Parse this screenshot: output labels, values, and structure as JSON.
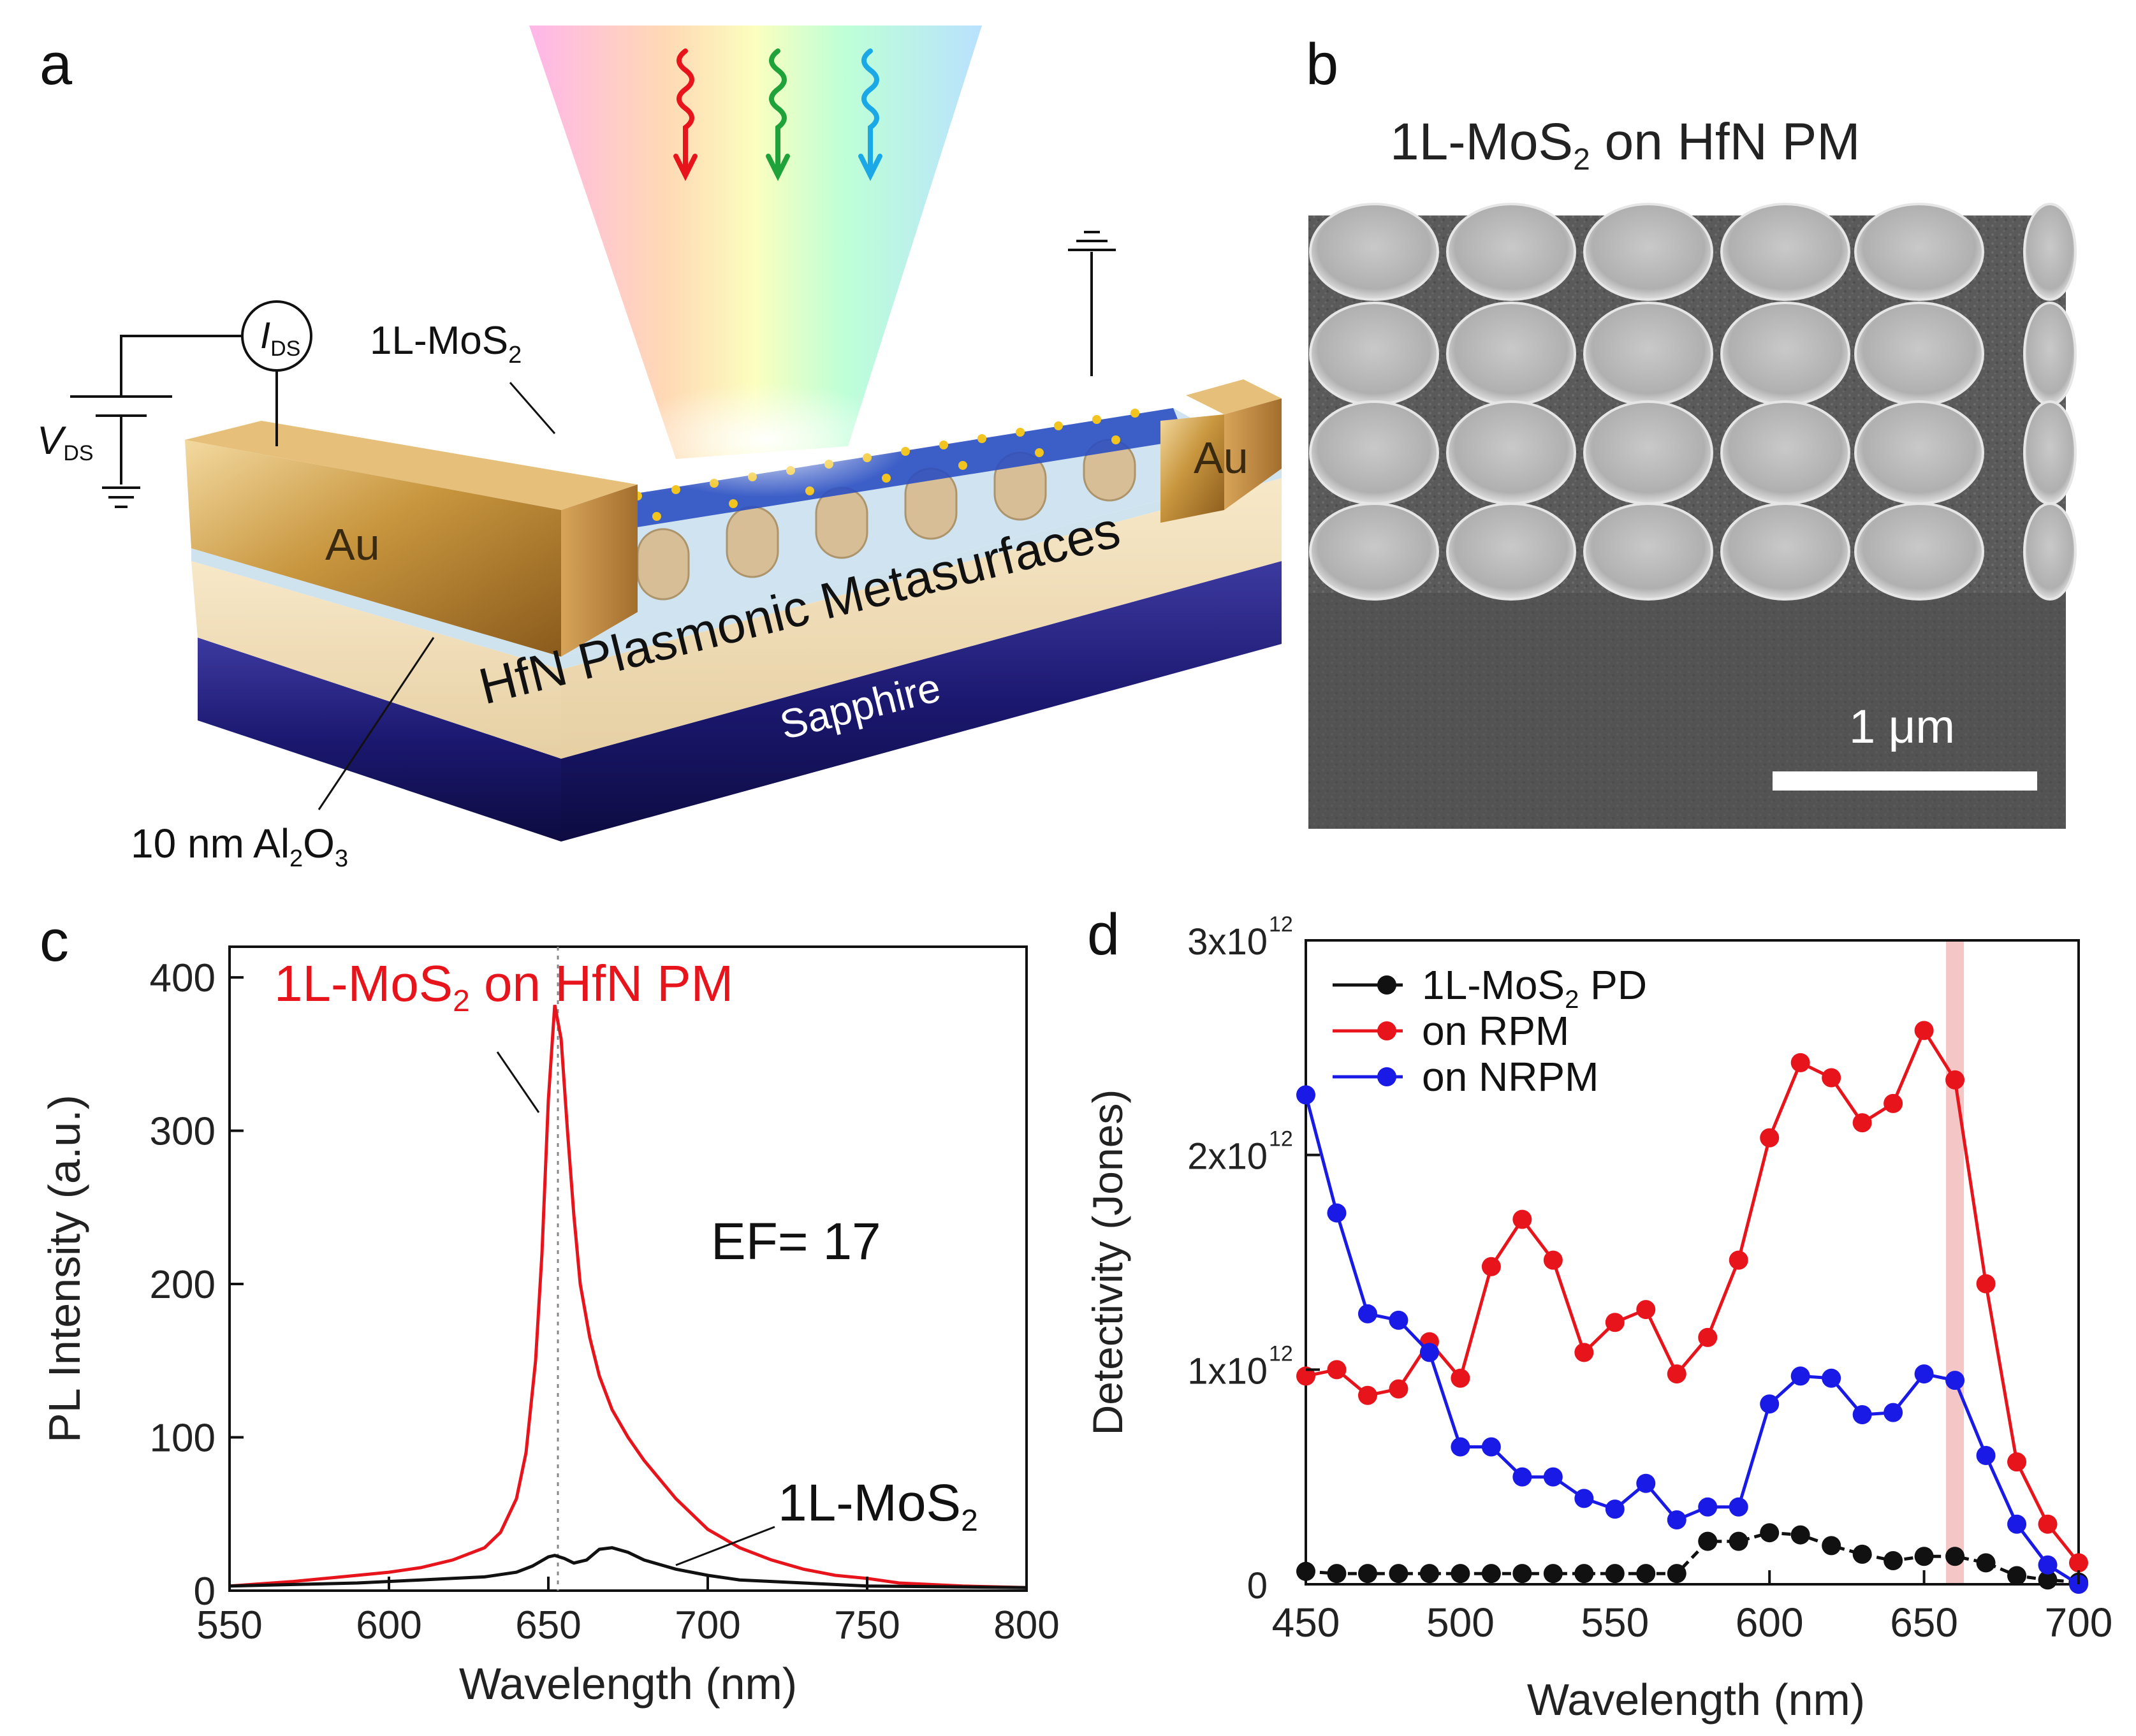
{
  "figure": {
    "panel_a": {
      "letter": "a",
      "label_mos2": "1L-MoS",
      "label_mos2_sub": "2",
      "label_au_left": "Au",
      "label_au_right": "Au",
      "label_hfn": "HfN Plasmonic Metasurfaces",
      "label_sapphire": "Sapphire",
      "label_al2o3_prefix": "10 nm  Al",
      "label_al2o3_sub": "2",
      "label_al2o3_o": "O",
      "label_al2o3_sub3": "3",
      "ids_main": "I",
      "ids_sub": "DS",
      "vds_main": "V",
      "vds_sub": "DS"
    },
    "panel_b": {
      "letter": "b",
      "title_main": "1L-MoS",
      "title_sub": "2",
      "title_rest": " on HfN PM",
      "scale_label": "1 μm"
    },
    "panel_c": {
      "letter": "c"
    },
    "panel_d": {
      "letter": "d"
    }
  },
  "colors": {
    "red": "#e8141c",
    "black": "#111111",
    "blue": "#1a1ae6",
    "highlight": "#f2b8b8"
  },
  "chart_data": [
    {
      "id": "c",
      "type": "line",
      "xlabel": "Wavelength (nm)",
      "ylabel": "PL Intensity (a.u.)",
      "xlim": [
        550,
        800
      ],
      "ylim": [
        0,
        420
      ],
      "xticks": [
        550,
        600,
        650,
        700,
        750,
        800
      ],
      "yticks": [
        0,
        100,
        200,
        300,
        400
      ],
      "annotation_ef": "EF= 17",
      "series_label_red_main": "1L-MoS",
      "series_label_red_sub": "2",
      "series_label_red_rest": " on HfN PM",
      "series_label_black_main": "1L-MoS",
      "series_label_black_sub": "2",
      "peak_marker_nm": 653,
      "series": [
        {
          "name": "1L-MoS2 on HfN PM",
          "color": "#e8141c",
          "x": [
            550,
            570,
            590,
            600,
            610,
            620,
            630,
            635,
            640,
            643,
            646,
            648,
            650,
            652,
            654,
            656,
            658,
            660,
            663,
            666,
            670,
            675,
            680,
            690,
            700,
            710,
            720,
            730,
            740,
            750,
            760,
            780,
            800
          ],
          "y": [
            3,
            6,
            10,
            12,
            15,
            20,
            28,
            38,
            60,
            90,
            150,
            220,
            320,
            382,
            360,
            300,
            245,
            200,
            165,
            140,
            118,
            100,
            85,
            60,
            40,
            28,
            20,
            14,
            10,
            8,
            5,
            3,
            2
          ]
        },
        {
          "name": "1L-MoS2",
          "color": "#111111",
          "x": [
            550,
            570,
            590,
            610,
            620,
            630,
            640,
            645,
            650,
            652,
            655,
            658,
            662,
            666,
            670,
            675,
            680,
            685,
            690,
            700,
            710,
            720,
            730,
            750,
            800
          ],
          "y": [
            3,
            4,
            5,
            7,
            8,
            9,
            12,
            16,
            22,
            23,
            21,
            18,
            20,
            27,
            28,
            25,
            20,
            17,
            14,
            10,
            7,
            6,
            5,
            3,
            2
          ]
        }
      ]
    },
    {
      "id": "d",
      "type": "line",
      "xlabel": "Wavelength (nm)",
      "ylabel": "Detectivity (Jones)",
      "xlim": [
        450,
        700
      ],
      "ylim": [
        0,
        3
      ],
      "xticks": [
        450,
        500,
        550,
        600,
        650,
        700
      ],
      "ytick_values": [
        0,
        1,
        2,
        3
      ],
      "ytick_labels": [
        [
          "0",
          ""
        ],
        [
          "1x10",
          "12"
        ],
        [
          "2x10",
          "12"
        ],
        [
          "3x10",
          "12"
        ]
      ],
      "highlight_x": 660,
      "legend": [
        {
          "main": "1L-MoS",
          "sub": "2",
          "rest": " PD",
          "color": "#111111"
        },
        {
          "main": "on RPM",
          "sub": "",
          "rest": "",
          "color": "#e8141c"
        },
        {
          "main": "on NRPM",
          "sub": "",
          "rest": "",
          "color": "#1a1ae6"
        }
      ],
      "series": [
        {
          "name": "1L-MoS2 PD",
          "color": "#111111",
          "x": [
            450,
            460,
            470,
            480,
            490,
            500,
            510,
            520,
            530,
            540,
            550,
            560,
            570,
            580,
            590,
            600,
            610,
            620,
            630,
            640,
            650,
            660,
            670,
            680,
            690,
            700
          ],
          "y": [
            0.06,
            0.05,
            0.05,
            0.05,
            0.05,
            0.05,
            0.05,
            0.05,
            0.05,
            0.05,
            0.05,
            0.05,
            0.05,
            0.2,
            0.2,
            0.24,
            0.23,
            0.18,
            0.14,
            0.11,
            0.13,
            0.13,
            0.1,
            0.04,
            0.02,
            0.01
          ]
        },
        {
          "name": "on RPM",
          "color": "#e8141c",
          "x": [
            450,
            460,
            470,
            480,
            490,
            500,
            510,
            520,
            530,
            540,
            550,
            560,
            570,
            580,
            590,
            600,
            610,
            620,
            630,
            640,
            650,
            660,
            670,
            680,
            690,
            700
          ],
          "y": [
            0.97,
            1.0,
            0.88,
            0.91,
            1.13,
            0.96,
            1.48,
            1.7,
            1.51,
            1.08,
            1.22,
            1.28,
            0.98,
            1.15,
            1.51,
            2.08,
            2.43,
            2.36,
            2.15,
            2.24,
            2.58,
            2.35,
            1.4,
            0.57,
            0.28,
            0.1
          ]
        },
        {
          "name": "on NRPM",
          "color": "#1a1ae6",
          "x": [
            450,
            460,
            470,
            480,
            490,
            500,
            510,
            520,
            530,
            540,
            550,
            560,
            570,
            580,
            590,
            600,
            610,
            620,
            630,
            640,
            650,
            660,
            670,
            680,
            690,
            700
          ],
          "y": [
            2.28,
            1.73,
            1.26,
            1.23,
            1.08,
            0.64,
            0.64,
            0.5,
            0.5,
            0.4,
            0.35,
            0.47,
            0.3,
            0.36,
            0.36,
            0.84,
            0.97,
            0.96,
            0.79,
            0.8,
            0.98,
            0.95,
            0.6,
            0.28,
            0.09,
            0.0
          ]
        }
      ]
    }
  ]
}
